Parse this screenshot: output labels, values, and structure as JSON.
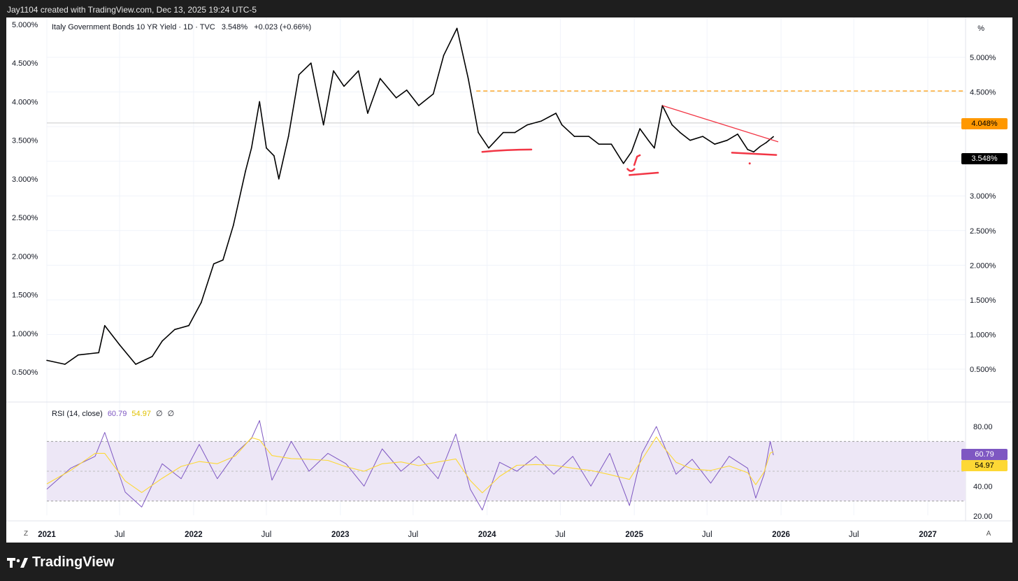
{
  "header": {
    "credit": "Jay1104 created with TradingView.com, Dec 13, 2025 19:24 UTC-5"
  },
  "legend": {
    "symbol": "Italy Government Bonds 10 YR Yield · 1D · TVC",
    "last": "3.548%",
    "change": "+0.023 (+0.66%)"
  },
  "rsi_legend": {
    "name": "RSI (14, close)",
    "rsi": "60.79",
    "ma": "54.97",
    "sym1": "∅",
    "sym2": "∅"
  },
  "axis": {
    "unit": "%",
    "z_button": "Z",
    "a_button": "A"
  },
  "badges": {
    "level": "4.048%",
    "price": "3.548%",
    "rsi": "60.79",
    "rsi_ma": "54.97"
  },
  "colors": {
    "price_line": "#000000",
    "level_line": "#ff9800",
    "annotation": "#f23645",
    "rsi_line": "#7e57c2",
    "rsi_ma_line": "#fdd835",
    "rsi_band": "#ede7f6"
  },
  "footer": {
    "brand": "TradingView"
  },
  "chart_data": {
    "type": "line",
    "title": "Italy Government Bonds 10 YR Yield",
    "x_axis_ticks": [
      "2021",
      "Jul",
      "2022",
      "Jul",
      "2023",
      "Jul",
      "2024",
      "Jul",
      "2025",
      "Jul",
      "2026",
      "Jul",
      "2027"
    ],
    "left_y_ticks": [
      "5.000%",
      "4.500%",
      "4.000%",
      "3.500%",
      "3.000%",
      "2.500%",
      "2.000%",
      "1.500%",
      "1.000%",
      "0.500%"
    ],
    "right_y_ticks": [
      "5.000%",
      "4.500%",
      "4.000%",
      "3.000%",
      "2.500%",
      "2.000%",
      "1.500%",
      "1.000%",
      "0.500%"
    ],
    "rsi_y_ticks": [
      "80.00",
      "40.00",
      "20.00"
    ],
    "series": [
      {
        "name": "Italy Government Bonds 10 YR Yield",
        "x": [
          "2021-01-01",
          "2021-02-15",
          "2021-03-20",
          "2021-05-10",
          "2021-05-25",
          "2021-07-01",
          "2021-08-10",
          "2021-09-20",
          "2021-10-15",
          "2021-11-15",
          "2021-12-20",
          "2022-01-20",
          "2022-02-20",
          "2022-03-15",
          "2022-04-10",
          "2022-05-10",
          "2022-05-25",
          "2022-06-14",
          "2022-07-01",
          "2022-07-20",
          "2022-08-01",
          "2022-08-25",
          "2022-09-20",
          "2022-10-20",
          "2022-11-20",
          "2022-12-15",
          "2023-01-10",
          "2023-02-15",
          "2023-03-10",
          "2023-04-10",
          "2023-05-20",
          "2023-06-15",
          "2023-07-15",
          "2023-08-20",
          "2023-09-15",
          "2023-10-18",
          "2023-11-15",
          "2023-12-10",
          "2024-01-05",
          "2024-02-10",
          "2024-03-10",
          "2024-04-10",
          "2024-05-15",
          "2024-06-20",
          "2024-07-05",
          "2024-08-05",
          "2024-09-10",
          "2024-10-05",
          "2024-11-05",
          "2024-12-05",
          "2024-12-25",
          "2025-01-15",
          "2025-02-05",
          "2025-02-20",
          "2025-03-12",
          "2025-04-05",
          "2025-04-25",
          "2025-05-20",
          "2025-06-20",
          "2025-07-20",
          "2025-08-20",
          "2025-09-15",
          "2025-10-10",
          "2025-10-25",
          "2025-11-10",
          "2025-11-25",
          "2025-12-13"
        ],
        "values": [
          0.65,
          0.6,
          0.72,
          0.75,
          1.1,
          0.85,
          0.6,
          0.7,
          0.9,
          1.05,
          1.1,
          1.4,
          1.9,
          1.95,
          2.4,
          3.1,
          3.4,
          4.0,
          3.4,
          3.3,
          3.0,
          3.55,
          4.35,
          4.5,
          3.7,
          4.4,
          4.2,
          4.4,
          3.85,
          4.3,
          4.05,
          4.15,
          3.95,
          4.1,
          4.6,
          4.95,
          4.3,
          3.6,
          3.4,
          3.6,
          3.6,
          3.7,
          3.75,
          3.85,
          3.7,
          3.55,
          3.55,
          3.45,
          3.45,
          3.2,
          3.35,
          3.65,
          3.5,
          3.4,
          3.95,
          3.7,
          3.6,
          3.5,
          3.55,
          3.45,
          3.5,
          3.58,
          3.38,
          3.35,
          3.42,
          3.47,
          3.548
        ]
      },
      {
        "name": "RSI (14, close)",
        "x": [
          "2021-01-01",
          "2021-03-01",
          "2021-05-01",
          "2021-05-25",
          "2021-07-15",
          "2021-08-25",
          "2021-10-15",
          "2021-12-01",
          "2022-01-15",
          "2022-03-01",
          "2022-04-15",
          "2022-05-25",
          "2022-06-14",
          "2022-07-15",
          "2022-09-01",
          "2022-10-15",
          "2022-12-01",
          "2023-01-15",
          "2023-03-01",
          "2023-04-15",
          "2023-06-01",
          "2023-07-15",
          "2023-09-01",
          "2023-10-15",
          "2023-11-20",
          "2023-12-20",
          "2024-02-01",
          "2024-03-15",
          "2024-05-01",
          "2024-06-15",
          "2024-08-01",
          "2024-09-15",
          "2024-11-01",
          "2024-12-20",
          "2025-01-20",
          "2025-02-25",
          "2025-03-12",
          "2025-04-15",
          "2025-05-25",
          "2025-07-10",
          "2025-08-25",
          "2025-10-10",
          "2025-10-30",
          "2025-11-20",
          "2025-12-05",
          "2025-12-13"
        ],
        "values": [
          38,
          52,
          60,
          76,
          36,
          26,
          55,
          45,
          68,
          45,
          62,
          72,
          84,
          44,
          70,
          50,
          62,
          55,
          40,
          65,
          50,
          60,
          45,
          75,
          38,
          24,
          56,
          50,
          60,
          48,
          60,
          40,
          62,
          27,
          62,
          80,
          70,
          48,
          58,
          42,
          60,
          52,
          32,
          48,
          70,
          60.79
        ]
      }
    ],
    "annotations": {
      "horizontal_level": 4.048,
      "last_price": 3.548
    },
    "ylim": [
      0.25,
      5.25
    ],
    "rsi_ylim": [
      15,
      90
    ],
    "rsi_bands": [
      30,
      70
    ]
  }
}
